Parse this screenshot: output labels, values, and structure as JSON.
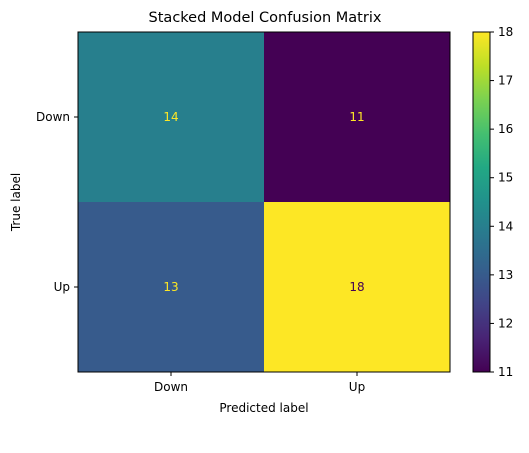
{
  "chart_data": {
    "type": "heatmap",
    "title": "Stacked Model Confusion Matrix",
    "xlabel": "Predicted label",
    "ylabel": "True label",
    "x_categories": [
      "Down",
      "Up"
    ],
    "y_categories": [
      "Down",
      "Up"
    ],
    "values": [
      [
        14,
        11
      ],
      [
        13,
        18
      ]
    ],
    "colorbar": {
      "min": 11,
      "max": 18,
      "ticks": [
        11,
        12,
        13,
        14,
        15,
        16,
        17,
        18
      ],
      "colormap": "viridis"
    },
    "text_colors": {
      "dark_cell": "#fde725",
      "light_cell": "#440154"
    },
    "grid": false,
    "legend": "colorbar-right"
  }
}
